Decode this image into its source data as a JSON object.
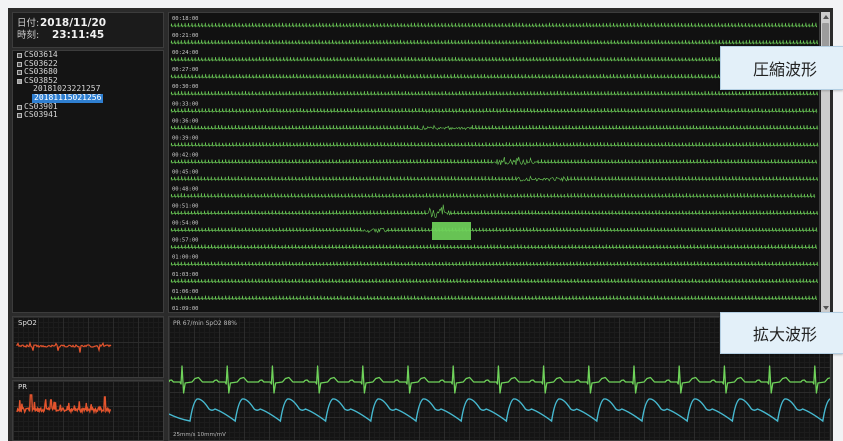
{
  "datetime": {
    "date_label": "日付:",
    "date_value": "2018/11/20",
    "time_label": "時刻:",
    "time_value": "23:11:45"
  },
  "patient_tree": {
    "items": [
      {
        "label": "CS03614",
        "icon": "expand-icon"
      },
      {
        "label": "CS03622",
        "icon": "expand-icon"
      },
      {
        "label": "CS03680",
        "icon": "expand-icon"
      },
      {
        "label": "CS03852",
        "icon": "collapse-icon"
      },
      {
        "label": "20181023221257"
      },
      {
        "label": "20181115021256",
        "selected": true
      },
      {
        "label": "CS03901",
        "icon": "expand-icon"
      },
      {
        "label": "CS03941",
        "icon": "expand-icon"
      }
    ]
  },
  "compressed_waveform": {
    "time_labels": [
      "00:18:00",
      "00:21:00",
      "00:24:00",
      "00:27:00",
      "00:30:00",
      "00:33:00",
      "00:36:00",
      "00:39:00",
      "00:42:00",
      "00:45:00",
      "00:48:00",
      "00:51:00",
      "00:54:00",
      "00:57:00",
      "01:00:00",
      "01:03:00",
      "01:06:00",
      "01:09:00"
    ]
  },
  "trends": {
    "spo2_label": "SpO2",
    "pr_label": "PR"
  },
  "expanded_waveform": {
    "vitals_label": "PR 67/min SpO2 88%",
    "scale_label": "25mm/s 10mm/mV"
  },
  "callouts": {
    "compressed": "圧縮波形",
    "expanded": "拡大波形"
  },
  "colors": {
    "trace_green": "#6fd35a",
    "pleth_cyan": "#46b9d0",
    "trend_orange": "#e4542d",
    "selection_blue": "#2f7fd1"
  }
}
